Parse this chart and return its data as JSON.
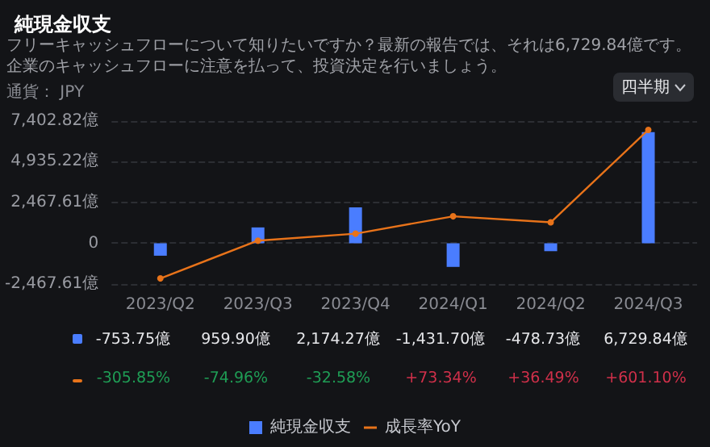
{
  "chart_data": {
    "type": "bar",
    "title": "純現金収支",
    "subtitle": "フリーキャッシュフローについて知りたいですか？最新の報告では、それは6,729.84億です。企業のキャッシュフローに注意を払って、投資決定を行いましょう。",
    "annotations": [
      "通貨： JPY",
      "四半期"
    ],
    "categories": [
      "2023/Q2",
      "2023/Q3",
      "2023/Q4",
      "2024/Q1",
      "2024/Q2",
      "2024/Q3"
    ],
    "series": [
      {
        "name": "純現金収支",
        "color": "#4a7dff",
        "values": [
          -753.75,
          959.9,
          2174.27,
          -1431.7,
          -478.73,
          6729.84
        ],
        "value_labels": [
          "-753.75億",
          "959.90億",
          "2,174.27億",
          "-1,431.70億",
          "-478.73億",
          "6,729.84億"
        ]
      },
      {
        "name": "成長率YoY",
        "type": "line",
        "axis": "y2",
        "color": "#e8731a",
        "marker": "circle",
        "values": [
          -305.85,
          -74.96,
          -32.58,
          73.34,
          36.49,
          601.1
        ],
        "value_labels": [
          "-305.85%",
          "-74.96%",
          "-32.58%",
          "+73.34%",
          "+36.49%",
          "+601.10%"
        ]
      }
    ],
    "ylim": [
      -2467.61,
      7402.82
    ],
    "yticks": [
      {
        "value": -2467.61,
        "label": "-2,467.61億"
      },
      {
        "value": 0,
        "label": "0"
      },
      {
        "value": 2467.61,
        "label": "2,467.61億"
      },
      {
        "value": 4935.22,
        "label": "4,935.22億"
      },
      {
        "value": 7402.82,
        "label": "7,402.82億"
      }
    ],
    "y2lim": [
      -340,
      655
    ],
    "tick_labels": "xy",
    "grid": "y",
    "legend": "bottom"
  }
}
